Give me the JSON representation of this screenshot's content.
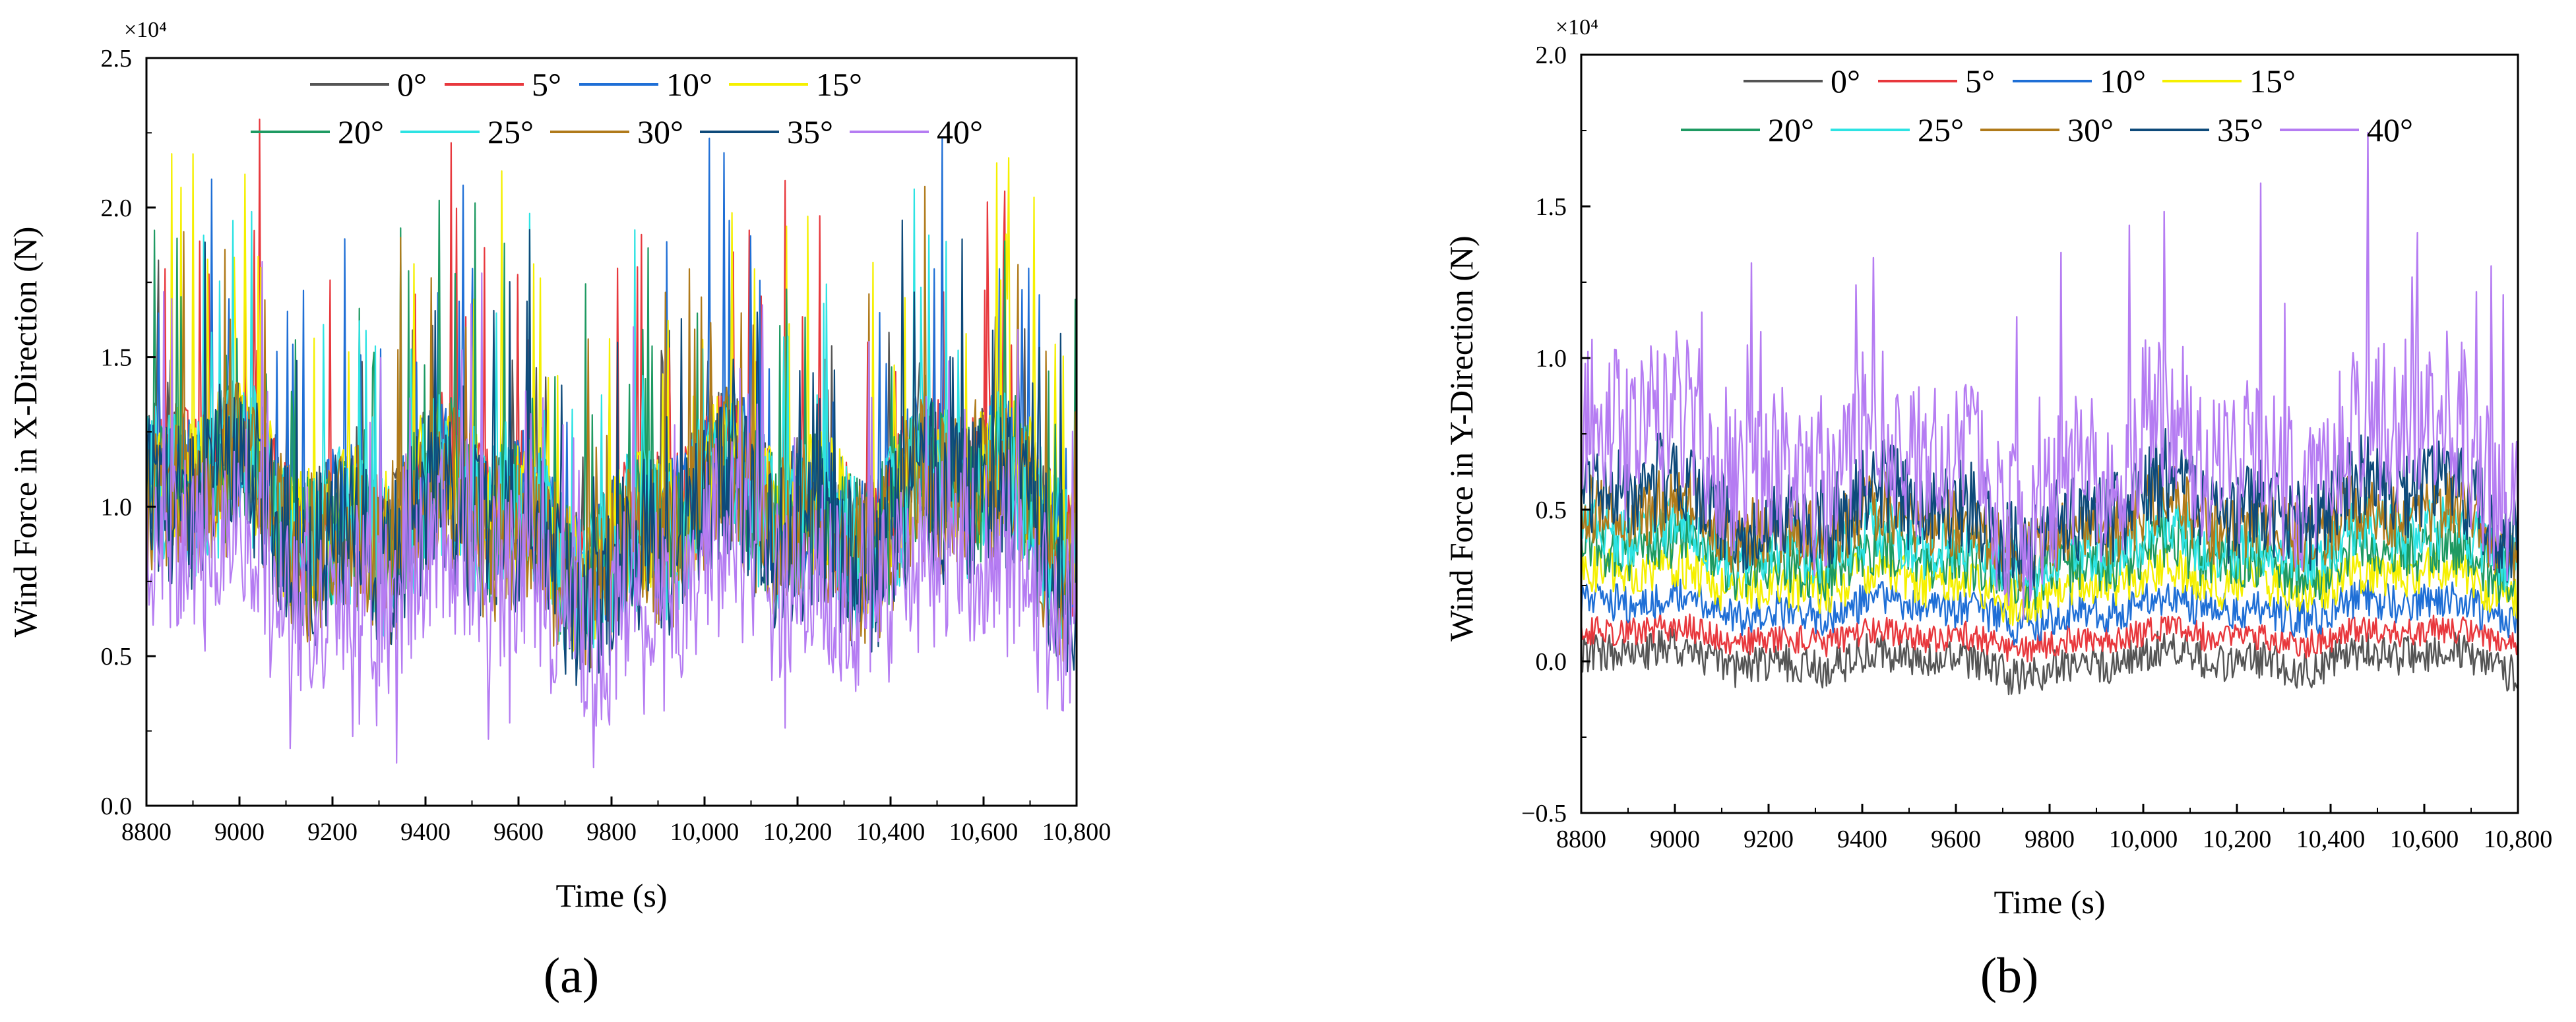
{
  "chart_data": [
    {
      "panel_label": "(a)",
      "type": "line",
      "xlabel": "Time (s)",
      "ylabel": "Wind Force in X-Direction (N)",
      "y_multiplier": "×10⁴",
      "xlim": [
        8800,
        10800
      ],
      "ylim": [
        0.0,
        2.5
      ],
      "x_ticks": [
        "8800",
        "9000",
        "9200",
        "9400",
        "9600",
        "9800",
        "10,000",
        "10,200",
        "10,400",
        "10,600",
        "10,800"
      ],
      "y_ticks": [
        "0.0",
        "0.5",
        "1.0",
        "1.5",
        "2.0",
        "2.5"
      ],
      "legend": [
        "0°",
        "5°",
        "10°",
        "15°",
        "20°",
        "25°",
        "30°",
        "35°",
        "40°"
      ],
      "legend_placement": "top-center",
      "grid": false,
      "series": [
        {
          "name": "0°",
          "color": "#555555",
          "mean": 1.0,
          "upper_envelope": 1.6
        },
        {
          "name": "5°",
          "color": "#e8383d",
          "mean": 1.0,
          "upper_envelope": 2.0
        },
        {
          "name": "10°",
          "color": "#1f6fd6",
          "mean": 0.99,
          "upper_envelope": 1.95
        },
        {
          "name": "15°",
          "color": "#f5f000",
          "mean": 0.98,
          "upper_envelope": 1.95
        },
        {
          "name": "20°",
          "color": "#1e9a62",
          "mean": 0.96,
          "upper_envelope": 1.8
        },
        {
          "name": "25°",
          "color": "#2de3e3",
          "mean": 0.95,
          "upper_envelope": 1.75
        },
        {
          "name": "30°",
          "color": "#b07a1a",
          "mean": 0.92,
          "upper_envelope": 1.7
        },
        {
          "name": "35°",
          "color": "#0e4a7a",
          "mean": 0.9,
          "upper_envelope": 1.7
        },
        {
          "name": "40°",
          "color": "#b57cf2",
          "mean": 0.75,
          "upper_envelope": 1.6,
          "lower_envelope": 0.2
        }
      ]
    },
    {
      "panel_label": "(b)",
      "type": "line",
      "xlabel": "Time (s)",
      "ylabel": "Wind Force in Y-Direction (N)",
      "y_multiplier": "×10⁴",
      "xlim": [
        8800,
        10800
      ],
      "ylim": [
        -0.5,
        2.0
      ],
      "x_ticks": [
        "8800",
        "9000",
        "9200",
        "9400",
        "9600",
        "9800",
        "10,000",
        "10,200",
        "10,400",
        "10,600",
        "10,800"
      ],
      "y_ticks": [
        "−0.5",
        "0.0",
        "0.5",
        "1.0",
        "1.5",
        "2.0"
      ],
      "legend": [
        "0°",
        "5°",
        "10°",
        "15°",
        "20°",
        "25°",
        "30°",
        "35°",
        "40°"
      ],
      "legend_placement": "top-center",
      "grid": false,
      "series": [
        {
          "name": "0°",
          "color": "#555555",
          "mean": 0.0,
          "amplitude": 0.08
        },
        {
          "name": "5°",
          "color": "#e8383d",
          "mean": 0.08,
          "amplitude": 0.06
        },
        {
          "name": "10°",
          "color": "#1f6fd6",
          "mean": 0.17,
          "amplitude": 0.08
        },
        {
          "name": "15°",
          "color": "#f5f000",
          "mean": 0.26,
          "amplitude": 0.1
        },
        {
          "name": "20°",
          "color": "#1e9a62",
          "mean": 0.33,
          "amplitude": 0.12
        },
        {
          "name": "25°",
          "color": "#2de3e3",
          "mean": 0.38,
          "amplitude": 0.13
        },
        {
          "name": "30°",
          "color": "#b07a1a",
          "mean": 0.45,
          "amplitude": 0.15
        },
        {
          "name": "35°",
          "color": "#0e4a7a",
          "mean": 0.5,
          "amplitude": 0.2
        },
        {
          "name": "40°",
          "color": "#b57cf2",
          "mean": 0.65,
          "amplitude": 0.35,
          "peak": 1.55
        }
      ]
    }
  ]
}
